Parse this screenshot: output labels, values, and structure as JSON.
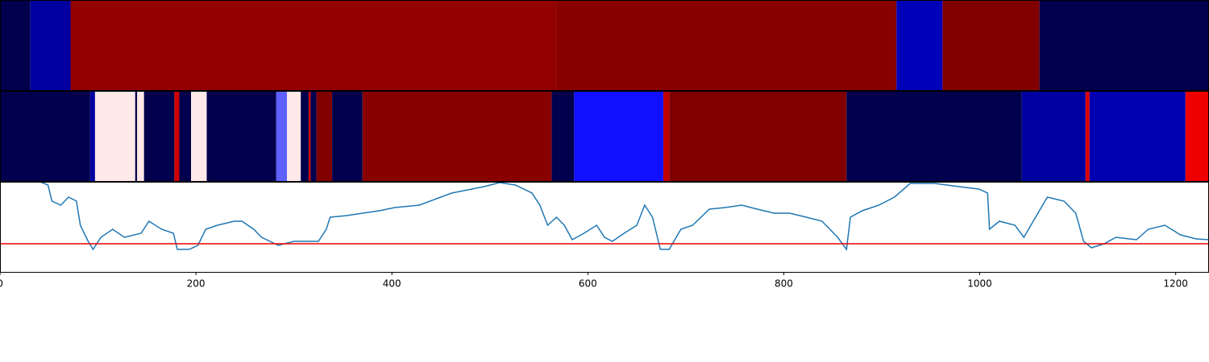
{
  "chart_data": [
    {
      "type": "band",
      "x": [
        0,
        31,
        72,
        568,
        915,
        962,
        1061,
        1234
      ],
      "colors": [
        "#00004c",
        "#0000a0",
        "#920000",
        "#880000",
        "#0000b8",
        "#800000",
        "#00004c"
      ],
      "xlim": [
        0,
        1234
      ]
    },
    {
      "type": "band",
      "x": [
        0,
        92,
        97,
        138,
        140,
        147,
        178,
        183,
        195,
        211,
        282,
        293,
        307,
        315,
        317,
        323,
        339,
        370,
        563,
        586,
        677,
        683,
        864,
        1043,
        1108,
        1112,
        1210,
        1234
      ],
      "colors": [
        "#00004c",
        "#0000a0",
        "#ffe8e8",
        "#00004c",
        "#ffe8e8",
        "#00004c",
        "#d00000",
        "#00004c",
        "#ffe8e8",
        "#00004c",
        "#6060ff",
        "#ffe8e8",
        "#00004c",
        "#d00000",
        "#00004c",
        "#800000",
        "#00004c",
        "#880000",
        "#00004c",
        "#1010ff",
        "#c00000",
        "#800000",
        "#00004c",
        "#0000a0",
        "#e00000",
        "#0000b0",
        "#ee0000"
      ],
      "xlim": [
        0,
        1234
      ]
    },
    {
      "type": "line",
      "x": [
        0,
        41,
        49,
        53,
        62,
        70,
        78,
        82,
        90,
        95,
        103,
        115,
        127,
        144,
        152,
        165,
        177,
        181,
        193,
        202,
        210,
        222,
        239,
        247,
        259,
        267,
        284,
        300,
        313,
        325,
        333,
        337,
        354,
        370,
        387,
        403,
        428,
        461,
        494,
        510,
        526,
        543,
        551,
        559,
        568,
        576,
        584,
        596,
        609,
        617,
        625,
        637,
        650,
        658,
        666,
        674,
        683,
        695,
        707,
        724,
        740,
        757,
        773,
        790,
        806,
        823,
        839,
        855,
        864,
        868,
        880,
        897,
        913,
        929,
        954,
        979,
        999,
        1008,
        1010,
        1020,
        1036,
        1045,
        1057,
        1069,
        1086,
        1098,
        1106,
        1114,
        1127,
        1139,
        1160,
        1172,
        1189,
        1205,
        1221,
        1234
      ],
      "values": [
        112,
        112,
        108,
        88,
        83,
        93,
        88,
        58,
        38,
        28,
        43,
        53,
        43,
        48,
        63,
        53,
        48,
        28,
        28,
        33,
        53,
        58,
        63,
        63,
        53,
        43,
        33,
        38,
        38,
        38,
        53,
        68,
        70,
        73,
        76,
        80,
        83,
        98,
        106,
        111,
        108,
        98,
        83,
        58,
        68,
        58,
        40,
        48,
        58,
        43,
        38,
        48,
        58,
        83,
        68,
        28,
        28,
        53,
        58,
        78,
        80,
        83,
        78,
        73,
        73,
        68,
        63,
        43,
        28,
        68,
        76,
        83,
        93,
        110,
        110,
        106,
        103,
        98,
        53,
        63,
        58,
        43,
        68,
        93,
        88,
        73,
        38,
        30,
        35,
        43,
        40,
        53,
        58,
        46,
        41,
        40
      ],
      "color": "#1f77b4",
      "hline": 35,
      "hline_color": "#ee0000",
      "xlim": [
        0,
        1234
      ],
      "ylim": [
        0,
        112
      ],
      "xticks": [
        0,
        200,
        400,
        600,
        800,
        1000,
        1200
      ]
    }
  ]
}
